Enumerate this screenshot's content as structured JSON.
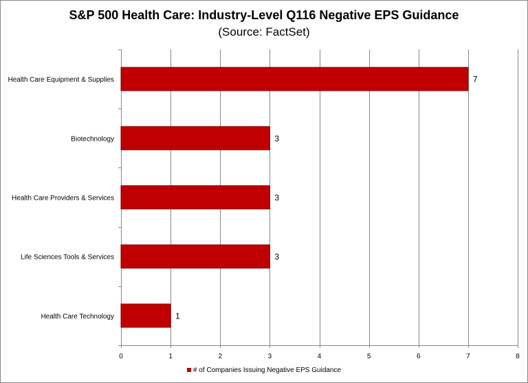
{
  "chart_data": {
    "type": "bar",
    "orientation": "horizontal",
    "title": "S&P 500 Health Care: Industry-Level Q116 Negative EPS Guidance",
    "subtitle": "(Source: FactSet)",
    "categories": [
      "Health Care Equipment & Supplies",
      "Biotechnology",
      "Health Care Providers & Services",
      "Life Sciences Tools & Services",
      "Health Care Technology"
    ],
    "series": [
      {
        "name": "# of Companies Issuing Negative EPS Guidance",
        "values": [
          7,
          3,
          3,
          3,
          1
        ],
        "color": "#c00000"
      }
    ],
    "xlim": [
      0,
      8
    ],
    "xticks": [
      "0",
      "1",
      "2",
      "3",
      "4",
      "5",
      "6",
      "7",
      "8"
    ],
    "grid": true,
    "legend": "bottom"
  }
}
